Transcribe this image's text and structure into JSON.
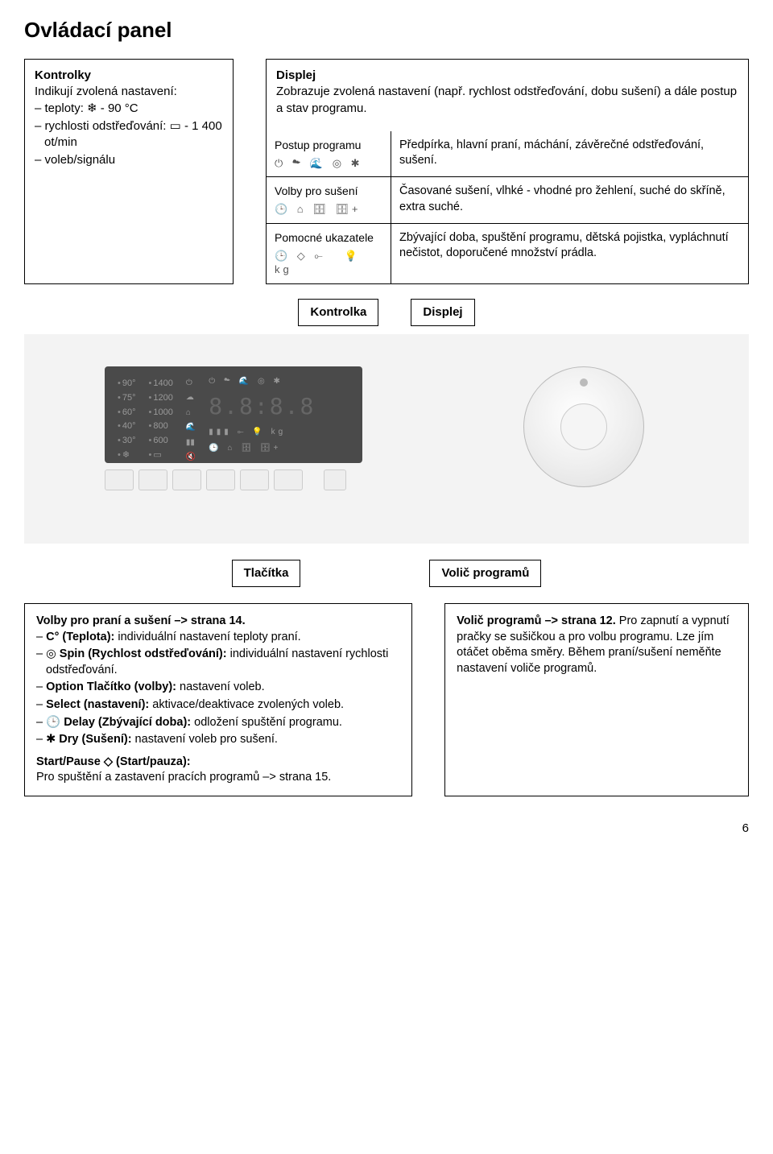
{
  "title": "Ovládací panel",
  "kontrolky": {
    "heading": "Kontrolky",
    "intro": "Indikují zvolená nastavení:",
    "items": [
      "teploty: ❄ - 90 °C",
      "rychlosti odstřeďování: ▭ - 1 400 ot/min",
      "voleb/signálu"
    ]
  },
  "displej": {
    "heading": "Displej",
    "desc": "Zobrazuje zvolená nastavení (např. rychlost odstřeďování, dobu sušení) a dále postup a stav programu.",
    "rows": [
      {
        "left": "Postup programu",
        "icons": "⏻ ☁ 🌊 ◎ ✱",
        "right": "Předpírka, hlavní praní, máchání, závěrečné odstřeďování, sušení."
      },
      {
        "left": "Volby pro sušení",
        "icons": "🕒 ⌂ 🗄 🗄+",
        "right": "Časované sušení, vlhké - vhodné pro žehlení, suché do skříně, extra suché."
      },
      {
        "left": "Pomocné ukazatele",
        "icons": "🕒  ◇  ⟜   💡  kg",
        "right": "Zbývající doba, spuštění programu, dětská pojistka, vypláchnutí nečistot, doporučené množství prádla."
      }
    ]
  },
  "connectorLabels": {
    "left": "Kontrolka",
    "right": "Displej"
  },
  "panel": {
    "temps": [
      "90°",
      "75°",
      "60°",
      "40°",
      "30°"
    ],
    "spins": [
      "1400",
      "1200",
      "1000",
      "800",
      "600"
    ],
    "seg": "8.8:8.8",
    "seg_sub": "▮▮▮  ⟜  💡  kg",
    "seg_sub2": "🕒 ⌂ 🗄 🗄+"
  },
  "labelsRow": {
    "left": "Tlačítka",
    "right": "Volič programů"
  },
  "leftBlock": {
    "heading": "Volby pro praní a sušení –> strana 14.",
    "items": [
      "C° (Teplota): individuální nastavení teploty praní.",
      "◎ Spin (Rychlost odstřeďování): individuální nastavení rychlosti odstřeďování.",
      "Option Tlačítko (volby): nastavení voleb.",
      "Select (nastavení): aktivace/deaktivace zvolených voleb.",
      "🕒 Delay (Zbývající doba): odložení spuštění programu.",
      "✱ Dry (Sušení): nastavení voleb pro sušení."
    ],
    "sub_heading": "Start/Pause ◇ (Start/pauza):",
    "sub_text": "Pro spuštění a zastavení pracích programů –> strana 15."
  },
  "rightBlock": {
    "heading": "Volič programů –> strana 12.",
    "text": "Pro zapnutí a vypnutí pračky se sušičkou a pro volbu programu. Lze jím otáčet oběma směry. Během praní/sušení neměňte nastavení voliče programů."
  },
  "pageNum": "6",
  "colors": {
    "panel_bg": "#4a4a4a",
    "gray_bg": "#f3f3f3"
  }
}
